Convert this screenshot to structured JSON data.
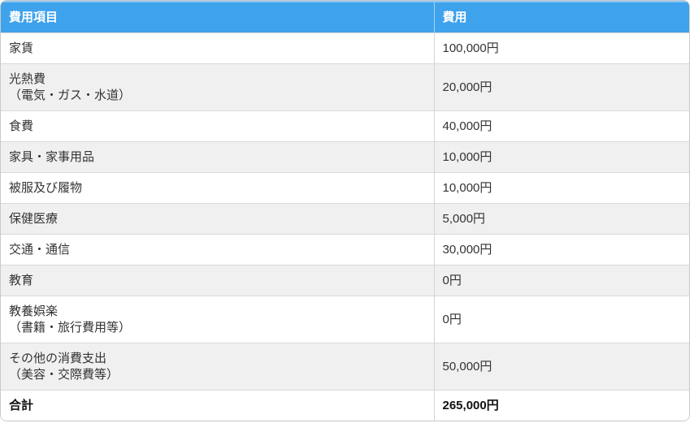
{
  "colors": {
    "header_bg": "#3fa2ec",
    "header_top_highlight": "#8cc6f2",
    "header_text": "#ffffff",
    "zebra_row_bg": "#f0f0f0",
    "row_border": "#d9d9d9",
    "outer_border": "#c9c9c9",
    "body_text": "#333333"
  },
  "header": {
    "item_col": "費用項目",
    "cost_col": "費用"
  },
  "rows": [
    {
      "item": "家賃",
      "sub": "",
      "value": "100,000円"
    },
    {
      "item": "光熱費",
      "sub": "（電気・ガス・水道）",
      "value": "20,000円"
    },
    {
      "item": "食費",
      "sub": "",
      "value": "40,000円"
    },
    {
      "item": "家具・家事用品",
      "sub": "",
      "value": "10,000円"
    },
    {
      "item": "被服及び履物",
      "sub": "",
      "value": "10,000円"
    },
    {
      "item": "保健医療",
      "sub": "",
      "value": "5,000円"
    },
    {
      "item": "交通・通信",
      "sub": "",
      "value": "30,000円"
    },
    {
      "item": "教育",
      "sub": "",
      "value": "0円"
    },
    {
      "item": "教養娯楽",
      "sub": "（書籍・旅行費用等）",
      "value": "0円"
    },
    {
      "item": "その他の消費支出",
      "sub": "（美容・交際費等）",
      "value": "50,000円"
    },
    {
      "item": "合計",
      "sub": "",
      "value": "265,000円"
    }
  ],
  "chart_data": {
    "type": "table",
    "title": "",
    "columns": [
      "費用項目",
      "費用"
    ],
    "categories": [
      "家賃",
      "光熱費（電気・ガス・水道）",
      "食費",
      "家具・家事用品",
      "被服及び履物",
      "保健医療",
      "交通・通信",
      "教育",
      "教養娯楽（書籍・旅行費用等）",
      "その他の消費支出（美容・交際費等）"
    ],
    "values_yen": [
      100000,
      20000,
      40000,
      10000,
      10000,
      5000,
      30000,
      0,
      0,
      50000
    ],
    "total_label": "合計",
    "total_yen": 265000,
    "layout": {
      "zebra_striping": true,
      "header_color": "#3fa2ec",
      "total_row_bold": true
    }
  }
}
